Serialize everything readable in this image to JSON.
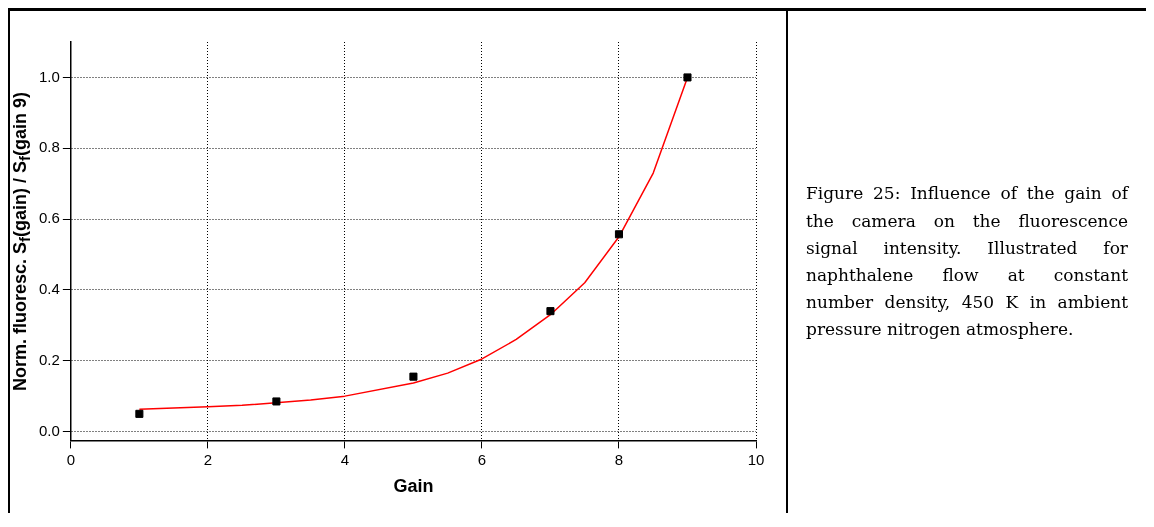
{
  "chart_data": {
    "type": "scatter",
    "xlabel": "Gain",
    "ylabel": "Norm. fluoresc. S$_{f}$(gain) / S$_{f}$(gain 9)",
    "xlim": [
      0,
      10
    ],
    "ylim": [
      -0.025,
      1.1
    ],
    "xticks": [
      0,
      2,
      4,
      6,
      8,
      10
    ],
    "yticks": [
      {
        "value": 0,
        "label": "0.0"
      },
      0.2,
      0.4,
      0.6,
      0.8,
      {
        "value": 1,
        "label": "1.0"
      }
    ],
    "grid": true,
    "legend": false,
    "series": [
      {
        "type": "scatter",
        "color": "#000000",
        "marker": "square",
        "x": [
          1,
          3,
          5,
          7,
          8,
          9
        ],
        "values": [
          0.05,
          0.085,
          0.155,
          0.34,
          0.557,
          1.0
        ]
      },
      {
        "type": "line",
        "color": "#ff0000",
        "marker": "none",
        "x": [
          1,
          2,
          2.5,
          3.5,
          4,
          5,
          5.5,
          6,
          6.5,
          7,
          7.5,
          8,
          8.5,
          9
        ],
        "values": [
          0.063,
          0.07,
          0.074,
          0.089,
          0.1,
          0.137,
          0.165,
          0.205,
          0.26,
          0.33,
          0.42,
          0.55,
          0.73,
          1.0
        ]
      }
    ],
    "annotations": [
      "Figure 25: Influence of the gain of the camera on the fluorescence signal intensity. Illustrated for naphthalene flow at constant number density, 450 K in ambient pressure nitrogen atmosphere."
    ]
  }
}
